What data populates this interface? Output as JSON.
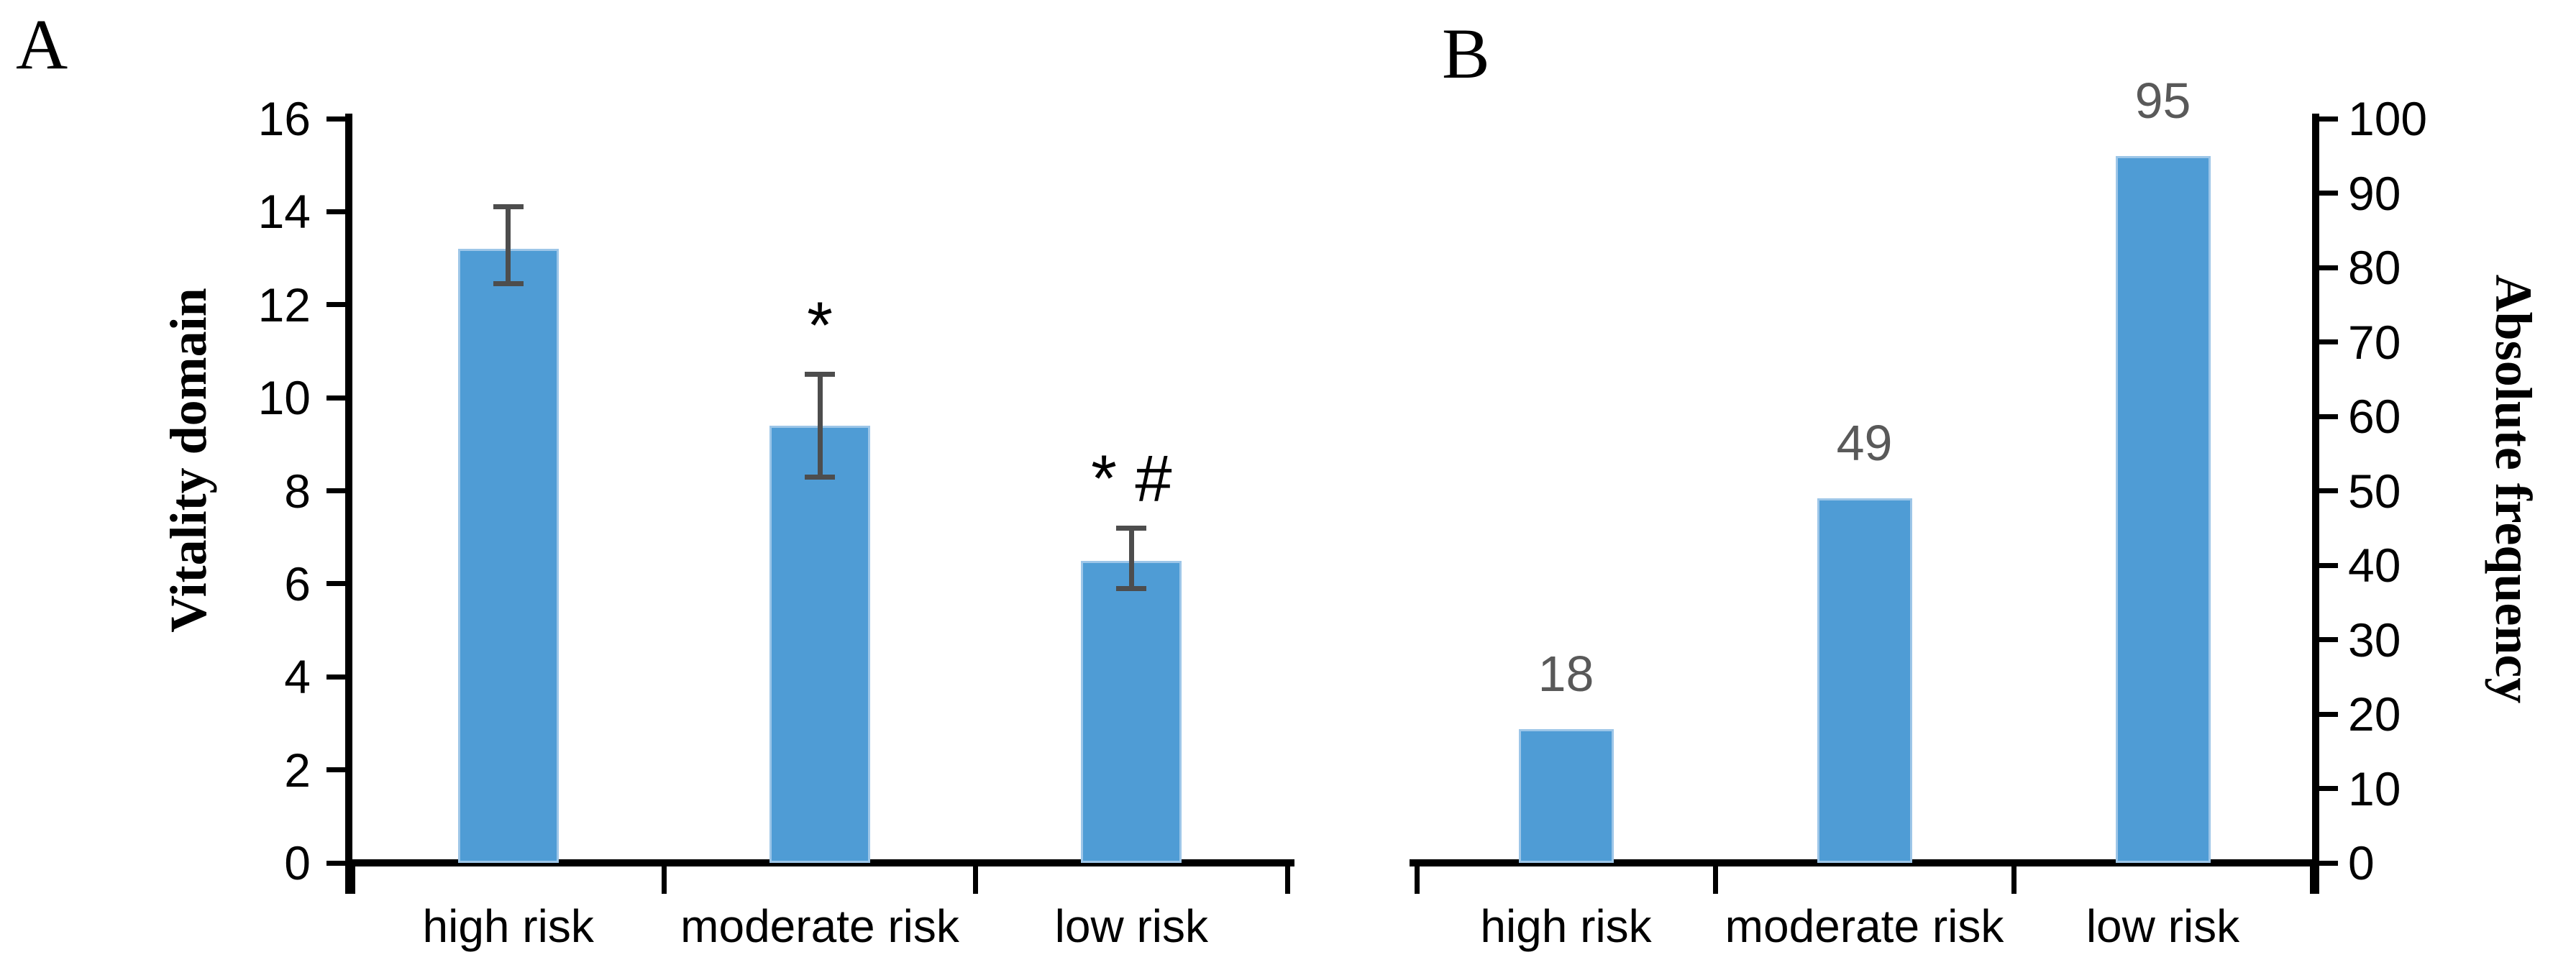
{
  "figure": {
    "background": "#ffffff",
    "panels": [
      "A",
      "B"
    ]
  },
  "colors": {
    "bar_fill": "#4F9CD5",
    "bar_edge": "#9DC6E8",
    "error_bar": "#4D4D4D",
    "data_label": "#595959",
    "axis": "#000000",
    "text": "#000000"
  },
  "chart_data": [
    {
      "panel_label": "A",
      "type": "bar",
      "title": "",
      "xlabel": "",
      "ylabel": "Vitality domain",
      "categories": [
        "high risk",
        "moderate risk",
        "low risk"
      ],
      "values": [
        13.2,
        9.4,
        6.5
      ],
      "error_bars": {
        "low": [
          12.45,
          8.3,
          5.9
        ],
        "high": [
          14.1,
          10.5,
          7.2
        ]
      },
      "significance": [
        "",
        "*",
        "* #"
      ],
      "ylim": [
        0,
        16
      ],
      "ytick_step": 2,
      "yticks": [
        0,
        2,
        4,
        6,
        8,
        10,
        12,
        14,
        16
      ],
      "yaxis_side": "left",
      "grid": false,
      "legend": false
    },
    {
      "panel_label": "B",
      "type": "bar",
      "title": "",
      "xlabel": "",
      "ylabel": "Absolute frequency",
      "categories": [
        "high risk",
        "moderate risk",
        "low risk"
      ],
      "values": [
        18,
        49,
        95
      ],
      "data_labels": [
        "18",
        "49",
        "95"
      ],
      "ylim": [
        0,
        100
      ],
      "ytick_step": 10,
      "yticks": [
        0,
        10,
        20,
        30,
        40,
        50,
        60,
        70,
        80,
        90,
        100
      ],
      "yaxis_side": "right",
      "grid": false,
      "legend": false
    }
  ]
}
